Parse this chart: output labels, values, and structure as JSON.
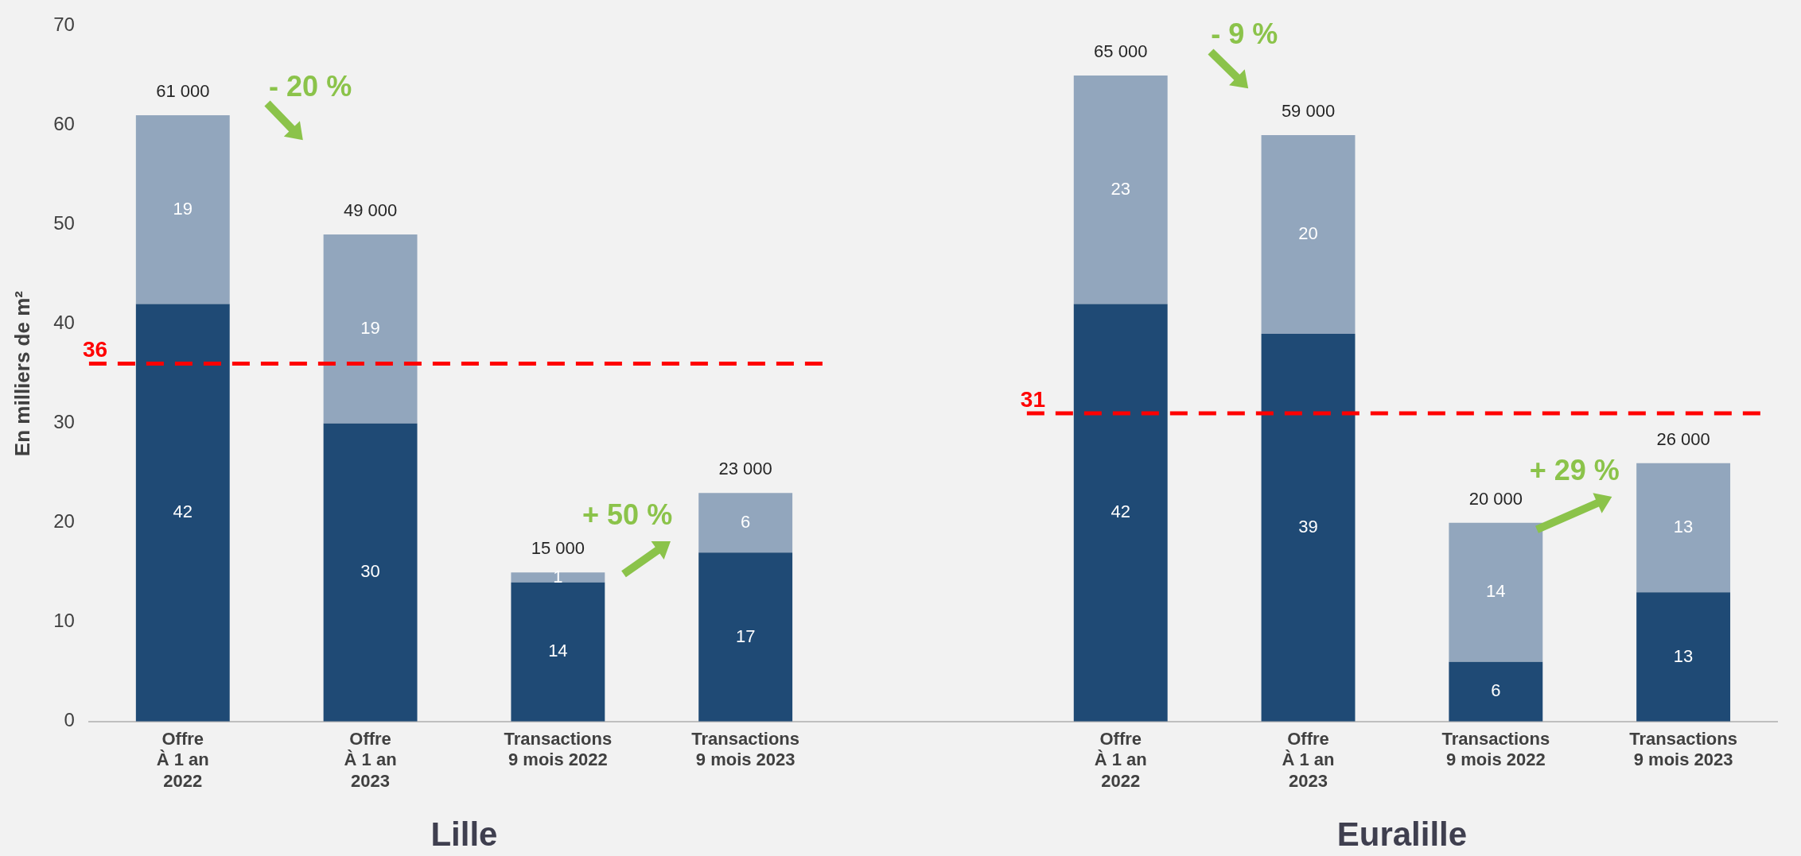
{
  "chart_data": {
    "type": "bar",
    "stacked": true,
    "ylabel": "En milliers de m²",
    "categories": [
      "Offre\nÀ 1 an\n2022",
      "Offre\nÀ 1 an\n2023",
      "Transactions\n9 mois 2022",
      "Transactions\n9 mois 2023",
      null,
      "Offre\nÀ 1 an\n2022",
      "Offre\nÀ 1 an\n2023",
      "Transactions\n9 mois 2022",
      "Transactions\n9 mois 2023"
    ],
    "series": [
      {
        "color": "#1f4a75",
        "values": [
          42,
          30,
          14,
          17,
          null,
          42,
          39,
          6,
          13
        ]
      },
      {
        "color": "#92a6bd",
        "values": [
          19,
          19,
          1,
          6,
          null,
          23,
          20,
          14,
          13
        ]
      }
    ],
    "totals": [
      "61 000",
      "49 000",
      "15 000",
      "23 000",
      null,
      "65 000",
      "59 000",
      "20 000",
      "26 000"
    ],
    "data_labels": true,
    "ylim": [
      0,
      70
    ],
    "yticks": [
      0,
      10,
      20,
      30,
      40,
      50,
      60,
      70
    ],
    "grid": false,
    "legend": false,
    "ref_lines": [
      {
        "axis": "y",
        "value": 36,
        "label": "36",
        "color": "#ff0000",
        "line_style": "dashed"
      },
      {
        "axis": "y",
        "value": 31,
        "label": "31",
        "color": "#ff0000",
        "line_style": "dashed"
      }
    ],
    "annotations": [
      "- 20 %",
      "+ 50 %",
      "- 9 %",
      "+ 29 %",
      "Lille",
      "Euralille"
    ]
  }
}
